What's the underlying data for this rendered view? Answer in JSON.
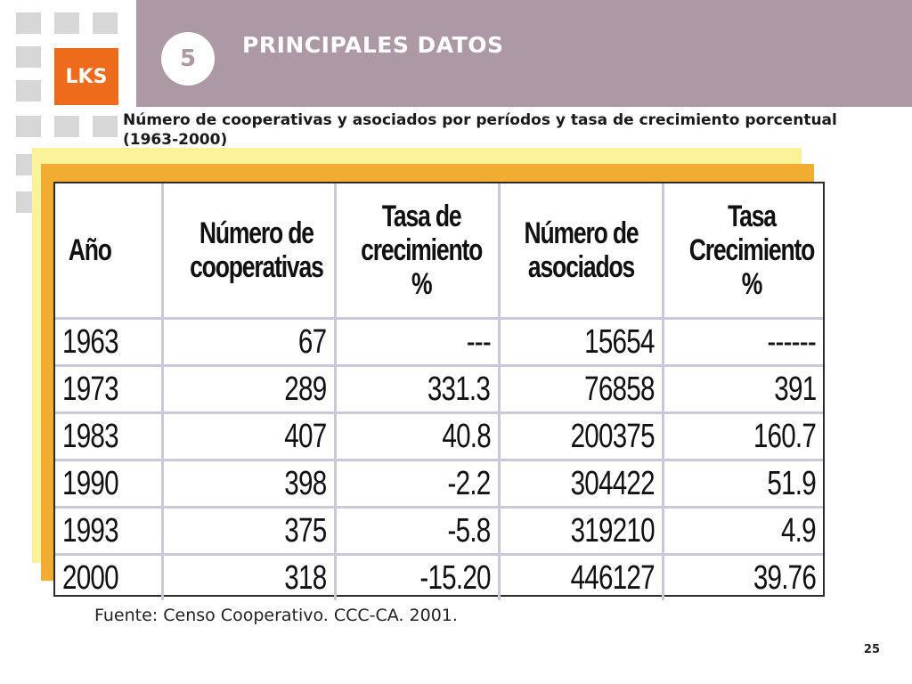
{
  "logo": {
    "text": "LKS"
  },
  "header": {
    "section_number": "5",
    "title": "PRINCIPALES DATOS"
  },
  "subtitle": "Número de cooperativas y asociados por períodos y tasa de crecimiento porcentual (1963-2000)",
  "table": {
    "headers": [
      "Año",
      "Número de cooperativas",
      "Tasa de crecimiento %",
      "Número de asociados",
      "Tasa Crecimiento %"
    ],
    "rows": [
      [
        "1963",
        "67",
        "---",
        "15654",
        "------"
      ],
      [
        "1973",
        "289",
        "331.3",
        "76858",
        "391"
      ],
      [
        "1983",
        "407",
        "40.8",
        "200375",
        "160.7"
      ],
      [
        "1990",
        "398",
        "-2.2",
        "304422",
        "51.9"
      ],
      [
        "1993",
        "375",
        "-5.8",
        "319210",
        "4.9"
      ],
      [
        "2000",
        "318",
        "-15.20",
        "446127",
        "39.76"
      ]
    ]
  },
  "source": "Fuente: Censo Cooperativo. CCC-CA. 2001.",
  "page_number": "25",
  "colors": {
    "header_band": "#ad98a6",
    "logo": "#ee6b1c",
    "backdrop_yellow": "#fbf29a",
    "backdrop_orange": "#f1ac32"
  }
}
